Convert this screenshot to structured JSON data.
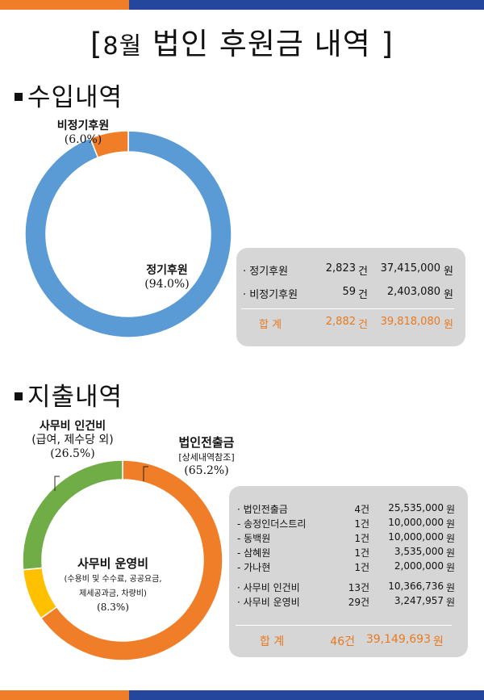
{
  "header": {
    "title_open": "[",
    "title_month": "8월",
    "title_main": " 법인 후원금 내역 ",
    "title_close": "]"
  },
  "colors": {
    "orange": "#f07d28",
    "navy": "#24479d",
    "blue": "#5b9bd5",
    "green": "#70ad47",
    "yellow": "#ffc000"
  },
  "income": {
    "heading": "수입내역",
    "chart_data": {
      "type": "pie",
      "title": "수입내역",
      "categories": [
        "정기후원",
        "비정기후원"
      ],
      "values": [
        94.0,
        6.0
      ],
      "unit": "%",
      "colors": [
        "#5b9bd5",
        "#f07d28"
      ]
    },
    "label_regular": {
      "name": "정기후원",
      "pct": "(94.0%)"
    },
    "label_irregular": {
      "name": "비정기후원",
      "pct": "(6.0%)"
    },
    "table": {
      "rows": [
        {
          "name": "· 정기후원",
          "count": "2,823",
          "unit": "건",
          "amount": "37,415,000",
          "won": "원"
        },
        {
          "name": "· 비정기후원",
          "count": "59",
          "unit": "건",
          "amount": "2,403,080",
          "won": "원"
        }
      ],
      "total": {
        "name": "합   계",
        "count": "2,882",
        "unit": "건",
        "amount": "39,818,080",
        "won": "원"
      }
    }
  },
  "expense": {
    "heading": "지출내역",
    "chart_data": {
      "type": "pie",
      "title": "지출내역",
      "categories": [
        "법인전출금",
        "사무비 운영비",
        "사무비 인건비"
      ],
      "values": [
        65.2,
        8.3,
        26.5
      ],
      "unit": "%",
      "colors": [
        "#f07d28",
        "#ffc000",
        "#70ad47"
      ]
    },
    "label_transfer": {
      "name": "법인전출금",
      "note": "[상세내역참조]",
      "pct": "(65.2%)"
    },
    "label_personnel": {
      "name": "사무비 인건비",
      "detail": "(급여, 제수당 외)",
      "pct": "(26.5%)"
    },
    "label_operation": {
      "name": "사무비 운영비",
      "detail1": "(수용비 및 수수료, 공공요금,",
      "detail2": "제세공과금, 차량비)",
      "pct": "(8.3%)"
    },
    "table": {
      "rows": [
        {
          "name": "· 법인전출금",
          "count": "4건",
          "amount": "25,535,000",
          "won": "원"
        },
        {
          "name": "-   송정인더스트리",
          "count": "1건",
          "amount": "10,000,000",
          "won": "원"
        },
        {
          "name": "-   동백원",
          "count": "1건",
          "amount": "10,000,000",
          "won": "원"
        },
        {
          "name": "-   삼혜원",
          "count": "1건",
          "amount": "3,535,000",
          "won": "원"
        },
        {
          "name": "-   가나현",
          "count": "1건",
          "amount": "2,000,000",
          "won": "원"
        },
        {
          "name": "· 사무비 인건비",
          "count": "13건",
          "amount": "10,366,736",
          "won": "원"
        },
        {
          "name": "· 사무비 운영비",
          "count": "29건",
          "amount": "3,247,957",
          "won": "원"
        }
      ],
      "total": {
        "name": "합   계",
        "count": "46건",
        "amount": "39,149,693",
        "won": "원"
      }
    }
  }
}
